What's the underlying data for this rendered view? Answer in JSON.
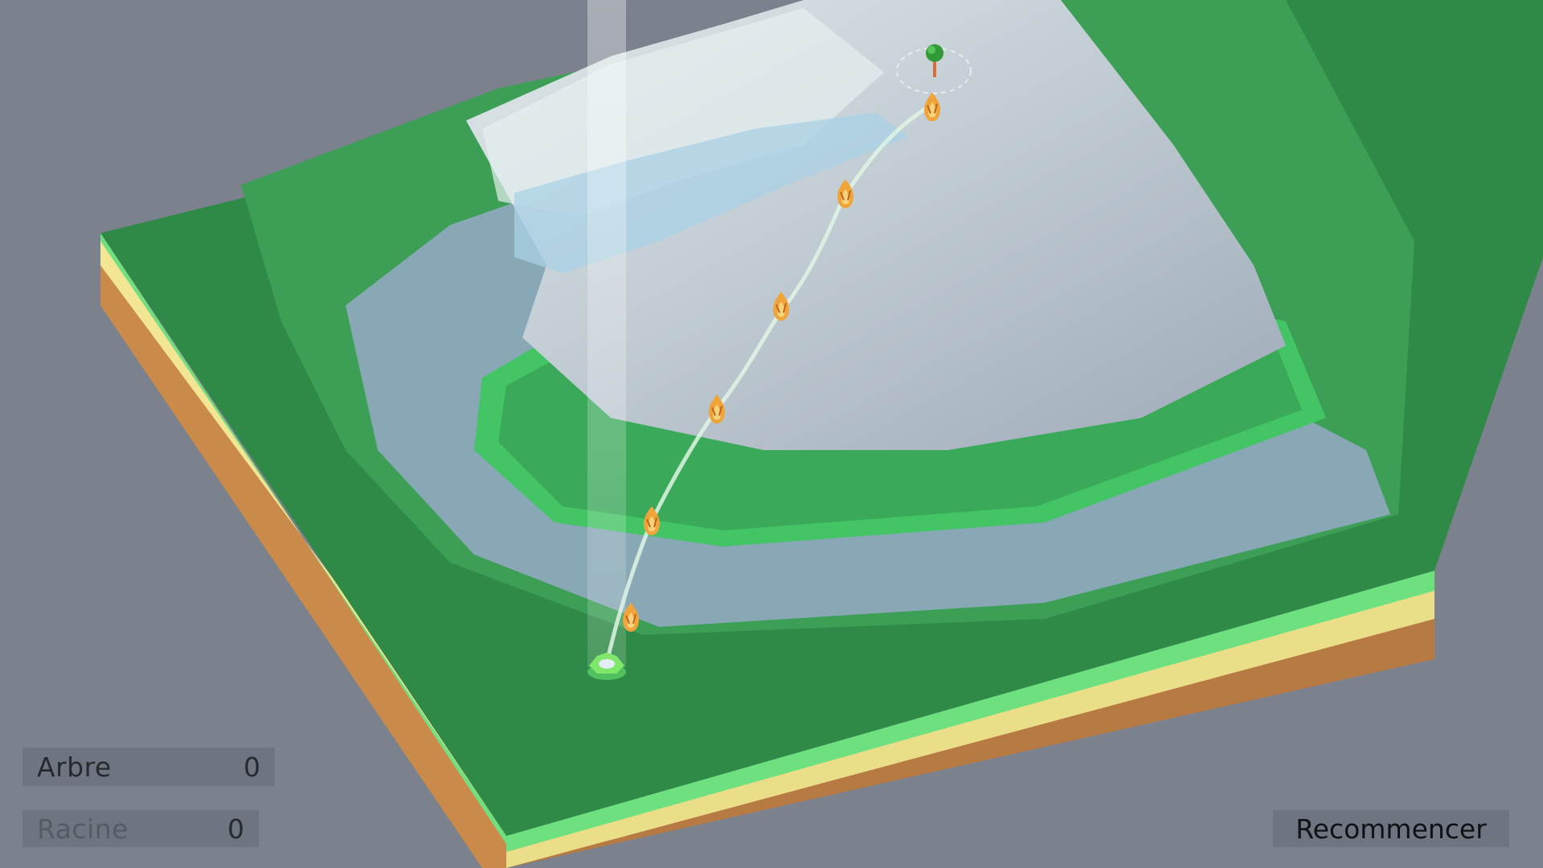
{
  "hud": {
    "arbre_label": "Arbre",
    "arbre_value": "0",
    "racine_label": "Racine",
    "racine_value": "0",
    "restart_label": "Recommencer"
  },
  "scene": {
    "waypoint_icon": "flame-sprout-icon",
    "goal_icon": "tree-icon",
    "start_icon": "seed-icon",
    "colors": {
      "background": "#7b818d",
      "grass_dark": "#2f8a47",
      "grass_light": "#45d06a",
      "rock": "#b8c7d0",
      "ice": "#9fc7dd",
      "dirt": "#c98a4a",
      "sand": "#f2e594",
      "path": "#dff5e4",
      "waypoint": "#f0a43a"
    }
  }
}
